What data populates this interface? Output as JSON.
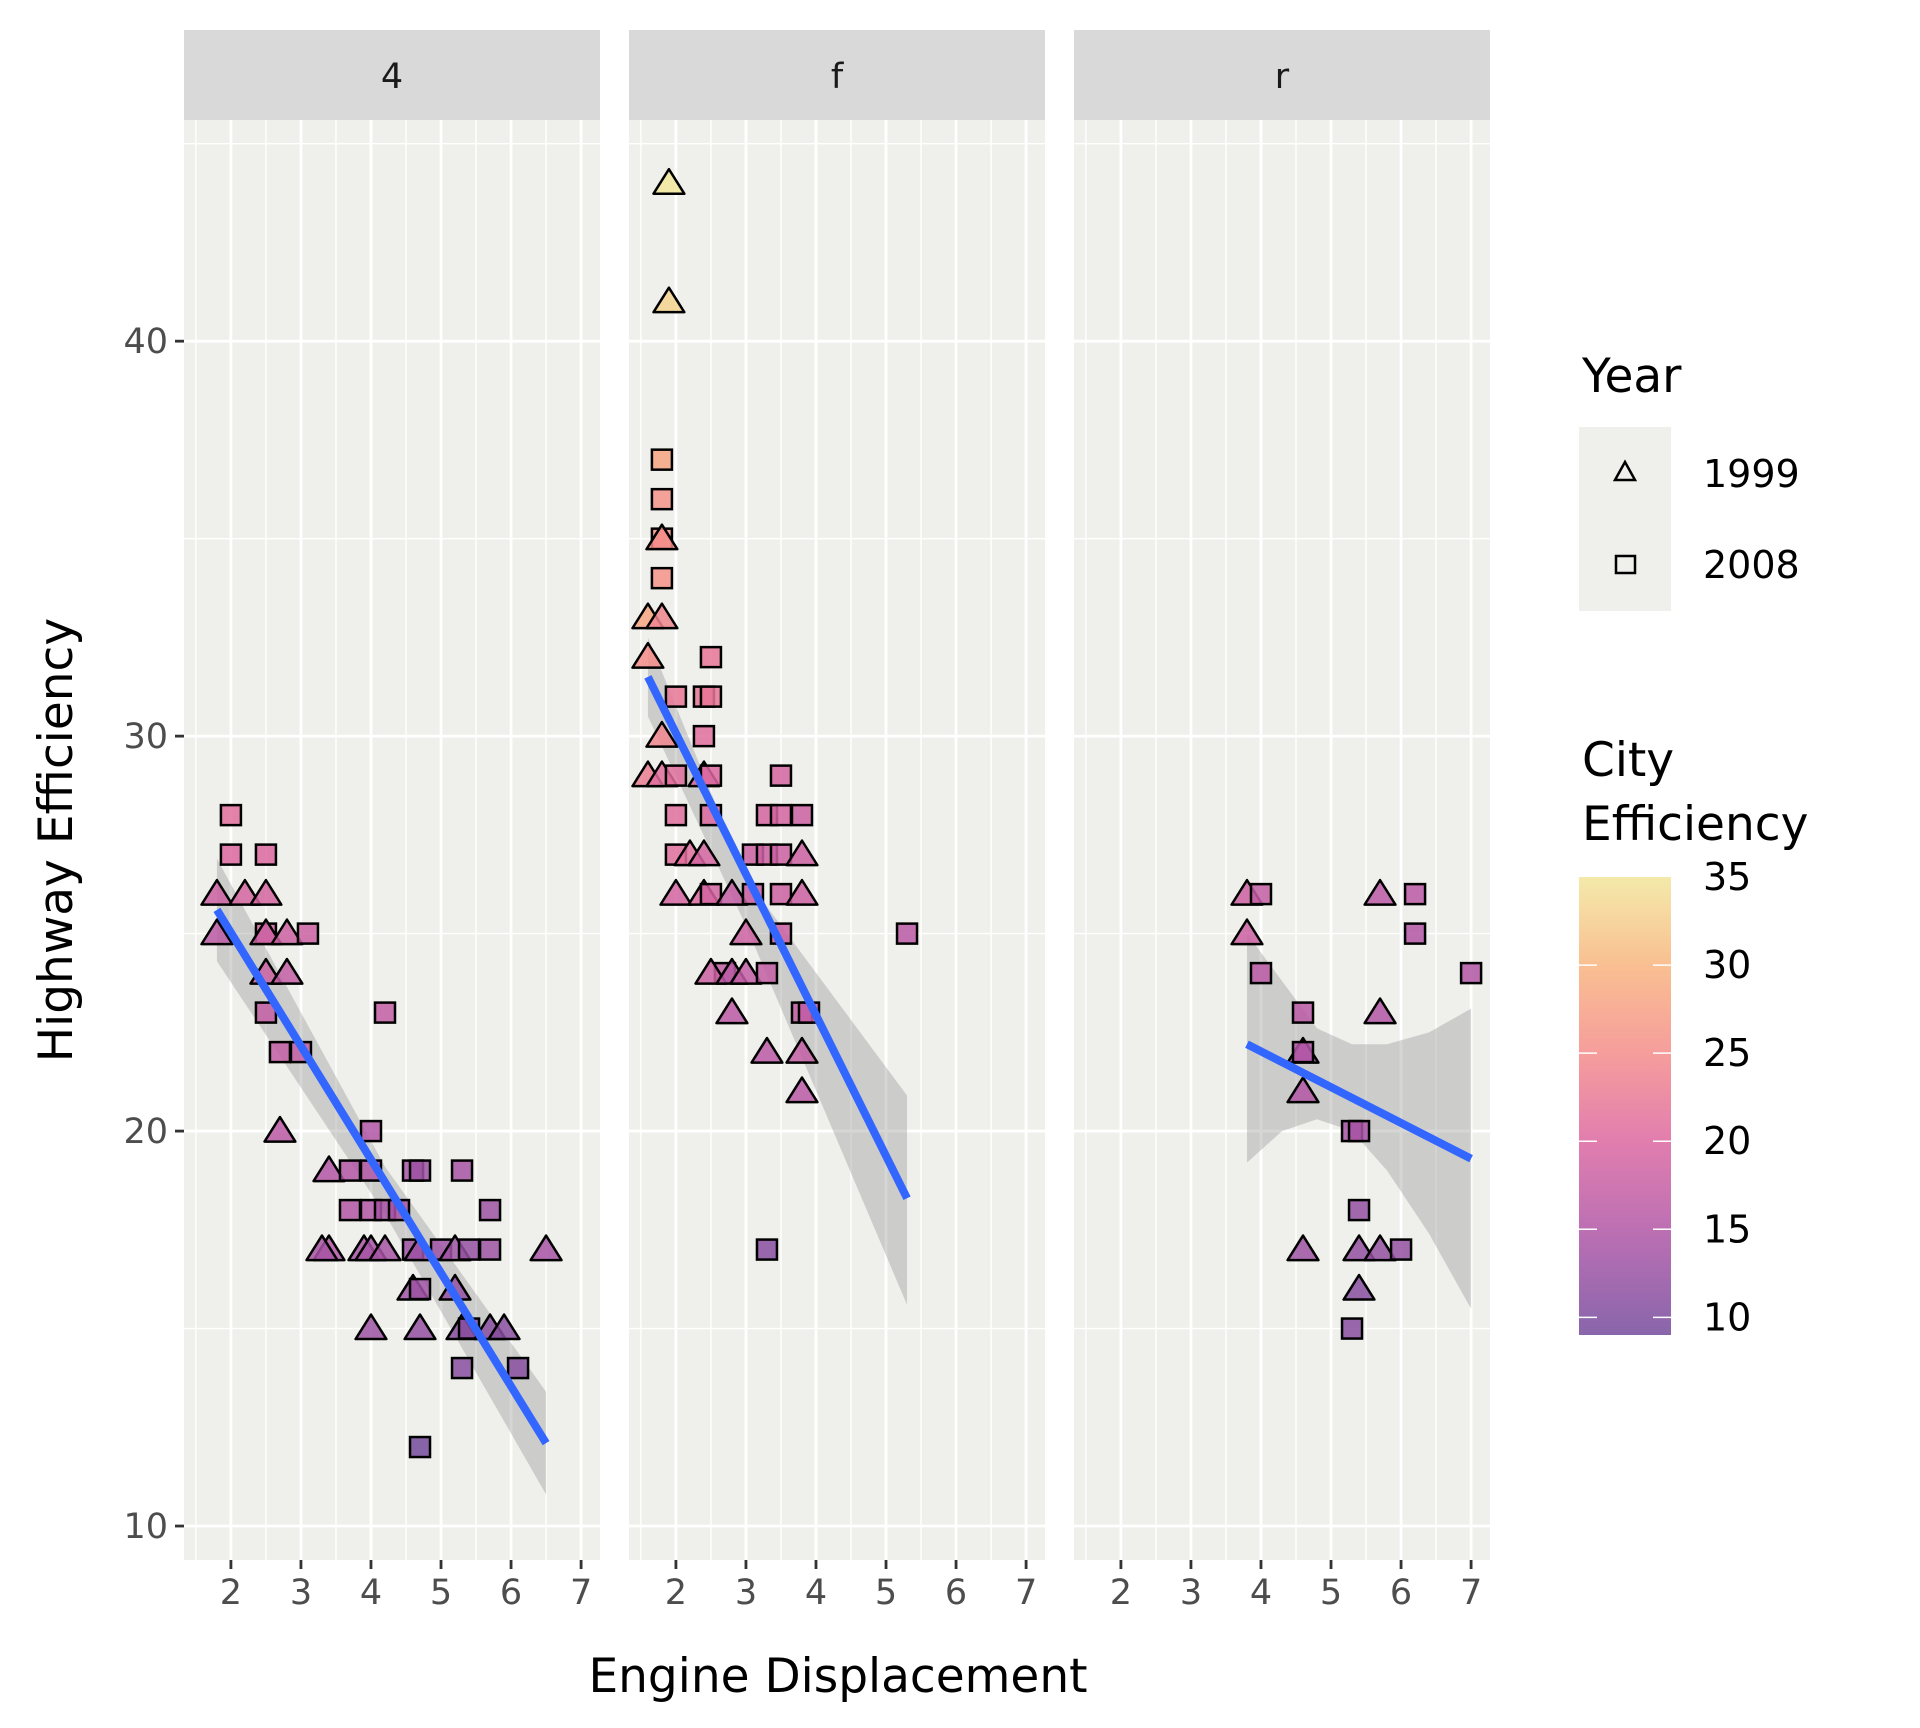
{
  "chart_data": {
    "type": "scatter",
    "title": "",
    "xlabel": "Engine Displacement",
    "ylabel": "Highway Efficiency",
    "facet_variable": "drv",
    "facets": [
      "4",
      "f",
      "r"
    ],
    "xlim": [
      1.33,
      7.27
    ],
    "ylim": [
      9.14,
      45.6
    ],
    "x_ticks": [
      2,
      3,
      4,
      5,
      6,
      7
    ],
    "y_ticks": [
      10,
      20,
      30,
      40
    ],
    "grid": true,
    "shape_legend": {
      "title": "Year",
      "position": "right",
      "entries": [
        {
          "label": "1999",
          "shape": "triangle"
        },
        {
          "label": "2008",
          "shape": "square"
        }
      ]
    },
    "color_legend": {
      "title": [
        "City",
        "Efficiency"
      ],
      "position": "right",
      "range": [
        9,
        35
      ],
      "ticks": [
        10,
        15,
        20,
        25,
        30,
        35
      ],
      "stops": [
        {
          "value": 9,
          "color": "#744a9c"
        },
        {
          "value": 15,
          "color": "#b156a6"
        },
        {
          "value": 20,
          "color": "#dc67a0"
        },
        {
          "value": 25,
          "color": "#f48c8a"
        },
        {
          "value": 30,
          "color": "#f8b47e"
        },
        {
          "value": 35,
          "color": "#f2e69b"
        }
      ]
    },
    "smooth_color": "#3366ff",
    "band_color": "#999999",
    "panels": [
      {
        "facet": "4",
        "smooth": {
          "x": [
            1.8,
            6.5
          ],
          "y": [
            25.6,
            12.1
          ]
        },
        "band": {
          "x": [
            1.8,
            4.2,
            6.5
          ],
          "lower": [
            24.3,
            17.9,
            10.8
          ],
          "upper": [
            26.9,
            19.1,
            13.4
          ]
        },
        "points": [
          [
            1.8,
            26,
            1999,
            18
          ],
          [
            1.8,
            25,
            1999,
            16
          ],
          [
            2.0,
            28,
            2008,
            21
          ],
          [
            2.0,
            27,
            2008,
            20
          ],
          [
            2.2,
            26,
            1999,
            19
          ],
          [
            2.5,
            27,
            2008,
            20
          ],
          [
            2.5,
            26,
            1999,
            19
          ],
          [
            2.5,
            25,
            2008,
            19
          ],
          [
            2.5,
            24,
            1999,
            18
          ],
          [
            2.5,
            23,
            2008,
            17
          ],
          [
            2.5,
            25,
            1999,
            18
          ],
          [
            2.8,
            25,
            1999,
            18
          ],
          [
            2.8,
            24,
            1999,
            17
          ],
          [
            3.1,
            25,
            2008,
            18
          ],
          [
            2.7,
            22,
            2008,
            17
          ],
          [
            2.7,
            20,
            1999,
            16
          ],
          [
            3.0,
            22,
            2008,
            17
          ],
          [
            4.2,
            23,
            2008,
            17
          ],
          [
            3.4,
            19,
            1999,
            15
          ],
          [
            3.4,
            17,
            1999,
            15
          ],
          [
            3.3,
            17,
            1999,
            14
          ],
          [
            3.7,
            19,
            2008,
            15
          ],
          [
            3.7,
            18,
            2008,
            15
          ],
          [
            3.9,
            17,
            1999,
            14
          ],
          [
            4.0,
            20,
            2008,
            15
          ],
          [
            4.0,
            19,
            2008,
            15
          ],
          [
            4.0,
            18,
            2008,
            15
          ],
          [
            4.0,
            17,
            1999,
            14
          ],
          [
            4.0,
            15,
            1999,
            13
          ],
          [
            4.2,
            18,
            2008,
            14
          ],
          [
            4.2,
            17,
            1999,
            14
          ],
          [
            4.4,
            18,
            2008,
            14
          ],
          [
            4.6,
            19,
            2008,
            14
          ],
          [
            4.7,
            19,
            2008,
            13
          ],
          [
            4.6,
            17,
            2008,
            13
          ],
          [
            4.6,
            16,
            1999,
            13
          ],
          [
            4.7,
            16,
            2008,
            13
          ],
          [
            4.7,
            17,
            1999,
            13
          ],
          [
            4.7,
            15,
            1999,
            12
          ],
          [
            4.7,
            12,
            2008,
            9
          ],
          [
            5.0,
            17,
            2008,
            13
          ],
          [
            5.2,
            17,
            1999,
            13
          ],
          [
            5.2,
            16,
            1999,
            12
          ],
          [
            5.3,
            19,
            2008,
            14
          ],
          [
            5.3,
            15,
            1999,
            11
          ],
          [
            5.3,
            14,
            2008,
            11
          ],
          [
            5.4,
            17,
            2008,
            12
          ],
          [
            5.4,
            15,
            2008,
            11
          ],
          [
            5.7,
            18,
            2008,
            13
          ],
          [
            5.7,
            17,
            2008,
            13
          ],
          [
            5.7,
            15,
            1999,
            11
          ],
          [
            5.9,
            15,
            1999,
            11
          ],
          [
            6.1,
            14,
            2008,
            11
          ],
          [
            6.5,
            17,
            1999,
            14
          ]
        ]
      },
      {
        "facet": "f",
        "smooth": {
          "x": [
            1.6,
            5.3
          ],
          "y": [
            31.5,
            18.3
          ]
        },
        "band": {
          "x": [
            1.6,
            3.0,
            5.3
          ],
          "lower": [
            30.5,
            25.2,
            15.6
          ],
          "upper": [
            32.5,
            26.4,
            20.9
          ]
        },
        "points": [
          [
            1.9,
            44,
            1999,
            35
          ],
          [
            1.9,
            41,
            1999,
            33
          ],
          [
            1.8,
            37,
            2008,
            28
          ],
          [
            1.8,
            36,
            2008,
            26
          ],
          [
            1.8,
            35,
            2008,
            26
          ],
          [
            1.8,
            35,
            1999,
            25
          ],
          [
            1.8,
            34,
            2008,
            26
          ],
          [
            1.6,
            33,
            1999,
            28
          ],
          [
            1.8,
            33,
            1999,
            24
          ],
          [
            1.6,
            32,
            1999,
            25
          ],
          [
            1.8,
            30,
            1999,
            24
          ],
          [
            1.6,
            29,
            1999,
            23
          ],
          [
            1.8,
            29,
            1999,
            21
          ],
          [
            2.0,
            31,
            2008,
            22
          ],
          [
            2.0,
            29,
            2008,
            21
          ],
          [
            2.0,
            28,
            2008,
            21
          ],
          [
            2.0,
            27,
            2008,
            21
          ],
          [
            2.0,
            26,
            1999,
            19
          ],
          [
            2.2,
            27,
            1999,
            21
          ],
          [
            2.4,
            27,
            1999,
            19
          ],
          [
            2.4,
            26,
            1999,
            20
          ],
          [
            2.4,
            29,
            1999,
            19
          ],
          [
            2.4,
            30,
            2008,
            21
          ],
          [
            2.4,
            31,
            2008,
            22
          ],
          [
            2.5,
            31,
            2008,
            22
          ],
          [
            2.5,
            32,
            2008,
            22
          ],
          [
            2.5,
            29,
            2008,
            20
          ],
          [
            2.5,
            28,
            2008,
            20
          ],
          [
            2.5,
            26,
            2008,
            19
          ],
          [
            2.7,
            24,
            2008,
            17
          ],
          [
            2.5,
            24,
            1999,
            18
          ],
          [
            2.8,
            26,
            1999,
            17
          ],
          [
            2.8,
            24,
            1999,
            16
          ],
          [
            2.8,
            23,
            1999,
            16
          ],
          [
            3.0,
            25,
            1999,
            18
          ],
          [
            3.0,
            24,
            1999,
            17
          ],
          [
            3.1,
            27,
            2008,
            18
          ],
          [
            3.1,
            26,
            2008,
            18
          ],
          [
            3.3,
            28,
            2008,
            19
          ],
          [
            3.3,
            27,
            2008,
            18
          ],
          [
            3.3,
            24,
            2008,
            17
          ],
          [
            3.3,
            22,
            1999,
            16
          ],
          [
            3.3,
            17,
            2008,
            11
          ],
          [
            3.5,
            29,
            2008,
            19
          ],
          [
            3.5,
            28,
            2008,
            19
          ],
          [
            3.5,
            27,
            2008,
            18
          ],
          [
            3.5,
            26,
            2008,
            18
          ],
          [
            3.5,
            25,
            2008,
            18
          ],
          [
            3.8,
            28,
            2008,
            18
          ],
          [
            3.8,
            27,
            1999,
            18
          ],
          [
            3.8,
            26,
            1999,
            18
          ],
          [
            3.8,
            23,
            2008,
            17
          ],
          [
            3.9,
            23,
            2008,
            17
          ],
          [
            3.8,
            22,
            1999,
            17
          ],
          [
            3.8,
            21,
            1999,
            16
          ],
          [
            5.3,
            25,
            2008,
            16
          ]
        ]
      },
      {
        "facet": "r",
        "smooth": {
          "x": [
            3.8,
            7.0
          ],
          "y": [
            22.2,
            19.3
          ]
        },
        "band": {
          "x": [
            3.8,
            4.3,
            4.8,
            5.3,
            5.8,
            6.4,
            7.0
          ],
          "lower": [
            19.2,
            20.0,
            20.3,
            20.0,
            19.0,
            17.4,
            15.5
          ],
          "upper": [
            25.0,
            23.8,
            22.6,
            22.2,
            22.2,
            22.5,
            23.1
          ]
        },
        "points": [
          [
            3.8,
            26,
            1999,
            18
          ],
          [
            3.8,
            25,
            1999,
            18
          ],
          [
            4.0,
            26,
            2008,
            17
          ],
          [
            4.0,
            24,
            2008,
            16
          ],
          [
            4.6,
            23,
            2008,
            16
          ],
          [
            4.6,
            22,
            1999,
            15
          ],
          [
            4.6,
            22,
            2008,
            15
          ],
          [
            4.6,
            21,
            1999,
            15
          ],
          [
            4.6,
            17,
            1999,
            13
          ],
          [
            5.3,
            20,
            2008,
            14
          ],
          [
            5.4,
            20,
            2008,
            14
          ],
          [
            5.4,
            18,
            2008,
            12
          ],
          [
            5.4,
            17,
            1999,
            12
          ],
          [
            5.4,
            16,
            1999,
            11
          ],
          [
            5.3,
            15,
            2008,
            11
          ],
          [
            5.7,
            26,
            1999,
            16
          ],
          [
            5.7,
            23,
            1999,
            15
          ],
          [
            5.7,
            17,
            1999,
            12
          ],
          [
            6.0,
            17,
            2008,
            12
          ],
          [
            6.2,
            26,
            2008,
            16
          ],
          [
            6.2,
            25,
            2008,
            15
          ],
          [
            7.0,
            24,
            2008,
            15
          ]
        ]
      }
    ],
    "point_fields": [
      "displ",
      "hwy",
      "year",
      "cty"
    ]
  }
}
